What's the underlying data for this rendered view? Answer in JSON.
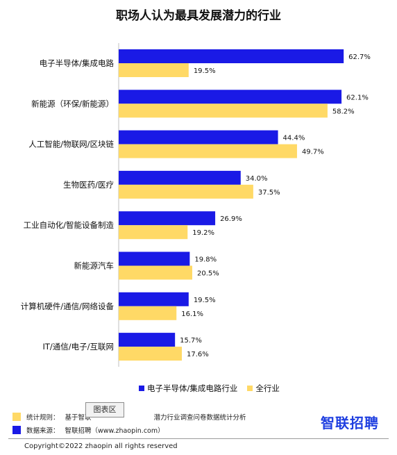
{
  "title": "职场人认为最具发展潜力的行业",
  "chart_data": {
    "type": "bar",
    "orientation": "horizontal",
    "categories": [
      "电子半导体/集成电路",
      "新能源（环保/新能源）",
      "人工智能/物联网/区块链",
      "生物医药/医疗",
      "工业自动化/智能设备制造",
      "新能源汽车",
      "计算机硬件/通信/网络设备",
      "IT/通信/电子/互联网"
    ],
    "series": [
      {
        "name": "电子半导体/集成电路行业",
        "color": "#1a1ae6",
        "values": [
          62.7,
          62.1,
          44.4,
          34.0,
          26.9,
          19.8,
          19.5,
          15.7
        ],
        "labels": [
          "62.7%",
          "62.1%",
          "44.4%",
          "34.0%",
          "26.9%",
          "19.8%",
          "19.5%",
          "15.7%"
        ]
      },
      {
        "name": "全行业",
        "color": "#ffd966",
        "values": [
          19.5,
          58.2,
          49.7,
          37.5,
          19.2,
          20.5,
          16.1,
          17.6
        ],
        "labels": [
          "19.5%",
          "58.2%",
          "49.7%",
          "37.5%",
          "19.2%",
          "20.5%",
          "16.1%",
          "17.6%"
        ]
      }
    ],
    "unit": "%",
    "legend_position": "bottom",
    "grid": false
  },
  "tooltip": "图表区",
  "notes": [
    {
      "label": "统计规则：",
      "text_start": "基于智联",
      "text_end": "潜力行业调查问卷数据统计分析",
      "color": "#ffd966"
    },
    {
      "label": "数据来源：",
      "text": "智联招聘（www.zhaopin.com）",
      "color": "#1a1ae6"
    }
  ],
  "brand": "智联招聘",
  "copyright": "Copyright©2022 zhaopin all rights reserved"
}
